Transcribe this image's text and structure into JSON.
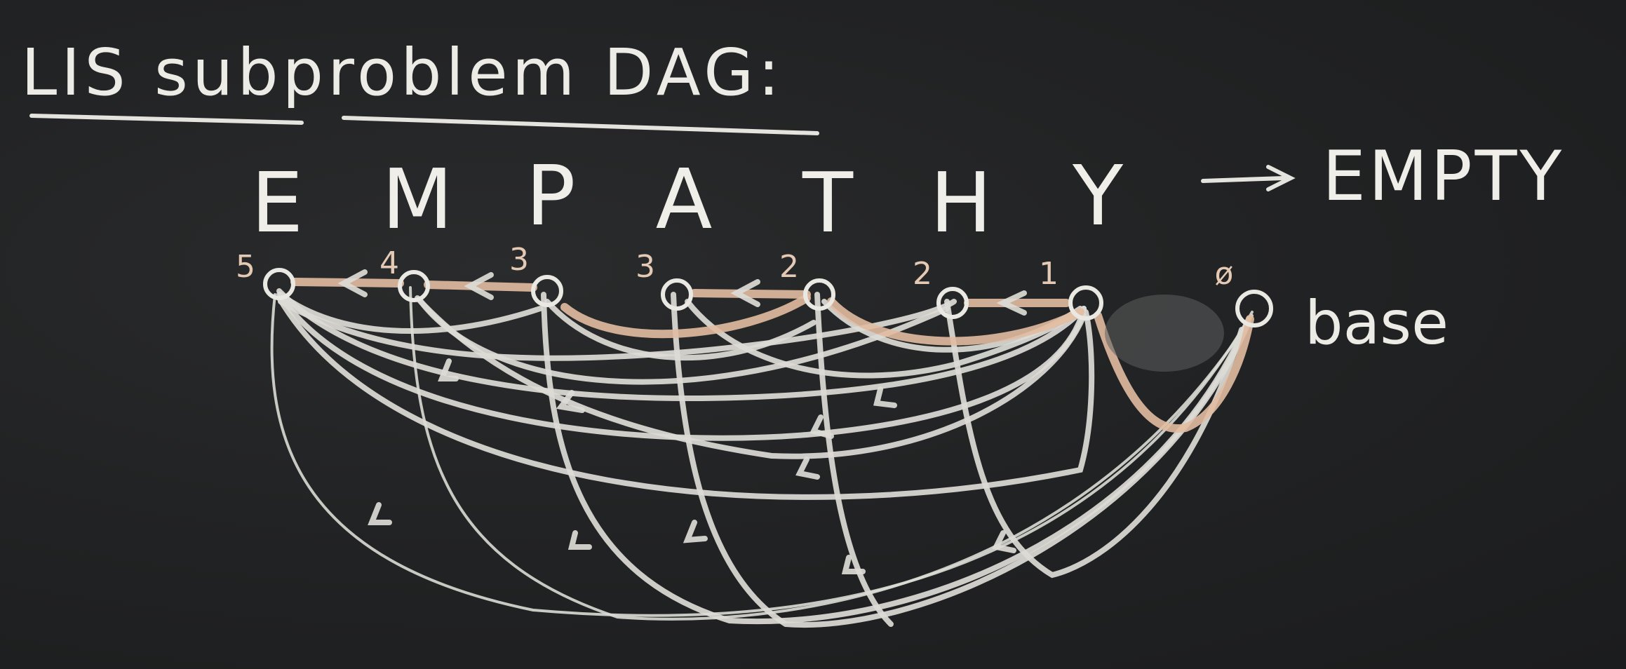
{
  "title": "LIS subproblem DAG:",
  "word": {
    "letters": [
      "E",
      "M",
      "P",
      "A",
      "T",
      "H",
      "Y"
    ]
  },
  "arrow_label": "EMPTY",
  "nodes": {
    "labels": [
      "5",
      "4",
      "3",
      "3",
      "2",
      "2",
      "1",
      "ø"
    ]
  },
  "base_label": "base",
  "colors": {
    "board": "#1f2021",
    "chalk_white": "#e8e6e0",
    "chalk_orange": "#e2bda1"
  }
}
